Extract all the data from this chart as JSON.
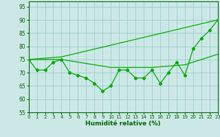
{
  "xlabel": "Humidité relative (%)",
  "xlim": [
    0,
    23
  ],
  "ylim": [
    55,
    97
  ],
  "yticks": [
    55,
    60,
    65,
    70,
    75,
    80,
    85,
    90,
    95
  ],
  "xticks": [
    0,
    1,
    2,
    3,
    4,
    5,
    6,
    7,
    8,
    9,
    10,
    11,
    12,
    13,
    14,
    15,
    16,
    17,
    18,
    19,
    20,
    21,
    22,
    23
  ],
  "bg_color": "#cce8e6",
  "grid_color": "#99ccca",
  "line_color": "#00aa00",
  "upper_line": {
    "x": [
      0,
      4,
      23
    ],
    "y": [
      75,
      76,
      90
    ]
  },
  "mid_line": {
    "x": [
      0,
      4,
      10,
      15,
      19,
      22,
      23
    ],
    "y": [
      75,
      75,
      72,
      72,
      73,
      76,
      77
    ]
  },
  "actual_line": {
    "x": [
      0,
      1,
      2,
      3,
      4,
      5,
      6,
      7,
      8,
      9,
      10,
      11,
      12,
      13,
      14,
      15,
      16,
      17,
      18,
      19,
      20,
      21,
      22,
      23
    ],
    "y": [
      75,
      71,
      71,
      74,
      75,
      70,
      69,
      68,
      66,
      63,
      65,
      71,
      71,
      68,
      68,
      71,
      66,
      70,
      74,
      69,
      79,
      83,
      86,
      90
    ]
  }
}
